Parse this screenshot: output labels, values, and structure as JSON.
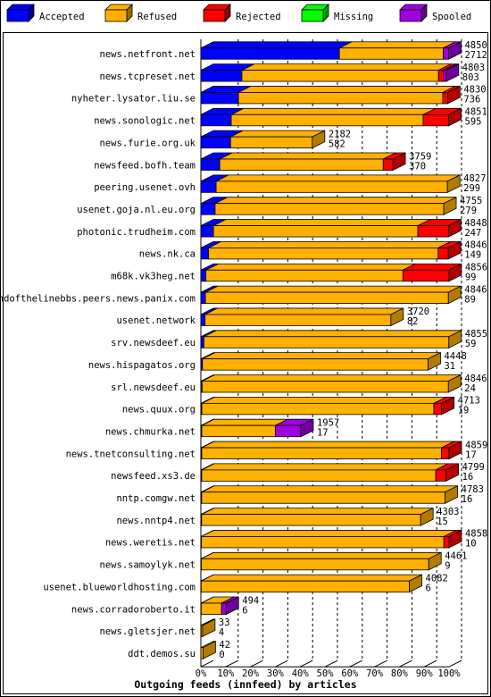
{
  "chart_data": {
    "type": "bar",
    "stacked": true,
    "orientation": "horizontal",
    "title": "Outgoing feeds (innfeed) by articles",
    "legend": [
      {
        "name": "Accepted",
        "color": "#0000ff"
      },
      {
        "name": "Refused",
        "color": "#ffb000"
      },
      {
        "name": "Rejected",
        "color": "#ff0000"
      },
      {
        "name": "Missing",
        "color": "#00ff00"
      },
      {
        "name": "Spooled",
        "color": "#a000e0"
      }
    ],
    "xlim": [
      0,
      100
    ],
    "xunit": "%",
    "xticks": [
      "0%",
      "10%",
      "20%",
      "30%",
      "40%",
      "50%",
      "60%",
      "70%",
      "80%",
      "90%",
      "100%"
    ],
    "max_total": 4859,
    "rows": [
      {
        "label": "news.netfront.net",
        "total": 4850,
        "accepted": 2712,
        "segments": [
          2712,
          2033,
          0,
          0,
          105
        ]
      },
      {
        "label": "news.tcpreset.net",
        "total": 4803,
        "accepted": 803,
        "segments": [
          803,
          3850,
          100,
          0,
          50
        ]
      },
      {
        "label": "nyheter.lysator.liu.se",
        "total": 4830,
        "accepted": 736,
        "segments": [
          736,
          4000,
          94,
          0,
          0
        ]
      },
      {
        "label": "news.sonologic.net",
        "total": 4851,
        "accepted": 595,
        "segments": [
          595,
          3756,
          500,
          0,
          0
        ]
      },
      {
        "label": "news.furie.org.uk",
        "total": 2182,
        "accepted": 582,
        "segments": [
          582,
          1600,
          0,
          0,
          0
        ]
      },
      {
        "label": "newsfeed.bofh.team",
        "total": 3759,
        "accepted": 370,
        "segments": [
          370,
          3200,
          189,
          0,
          0
        ]
      },
      {
        "label": "peering.usenet.ovh",
        "total": 4827,
        "accepted": 299,
        "segments": [
          299,
          4528,
          0,
          0,
          0
        ]
      },
      {
        "label": "usenet.goja.nl.eu.org",
        "total": 4755,
        "accepted": 279,
        "segments": [
          279,
          4476,
          0,
          0,
          0
        ]
      },
      {
        "label": "photonic.trudheim.com",
        "total": 4848,
        "accepted": 247,
        "segments": [
          247,
          4001,
          600,
          0,
          0
        ]
      },
      {
        "label": "news.nk.ca",
        "total": 4846,
        "accepted": 149,
        "segments": [
          149,
          4497,
          200,
          0,
          0
        ]
      },
      {
        "label": "m68k.vk3heg.net",
        "total": 4856,
        "accepted": 99,
        "segments": [
          99,
          3857,
          900,
          0,
          0
        ]
      },
      {
        "label": "endofthelinebbs.peers.news.panix.com",
        "total": 4846,
        "accepted": 89,
        "segments": [
          89,
          4757,
          0,
          0,
          0
        ]
      },
      {
        "label": "usenet.network",
        "total": 3720,
        "accepted": 82,
        "segments": [
          82,
          3638,
          0,
          0,
          0
        ]
      },
      {
        "label": "srv.newsdeef.eu",
        "total": 4855,
        "accepted": 59,
        "segments": [
          59,
          4796,
          0,
          0,
          0
        ]
      },
      {
        "label": "news.hispagatos.org",
        "total": 4448,
        "accepted": 31,
        "segments": [
          31,
          4417,
          0,
          0,
          0
        ]
      },
      {
        "label": "srl.newsdeef.eu",
        "total": 4846,
        "accepted": 24,
        "segments": [
          24,
          4822,
          0,
          0,
          0
        ]
      },
      {
        "label": "news.quux.org",
        "total": 4713,
        "accepted": 19,
        "segments": [
          19,
          4544,
          150,
          0,
          0
        ]
      },
      {
        "label": "news.chmurka.net",
        "total": 1957,
        "accepted": 17,
        "segments": [
          17,
          1440,
          0,
          0,
          500
        ]
      },
      {
        "label": "news.tnetconsulting.net",
        "total": 4859,
        "accepted": 17,
        "segments": [
          17,
          4692,
          150,
          0,
          0
        ]
      },
      {
        "label": "newsfeed.xs3.de",
        "total": 4799,
        "accepted": 16,
        "segments": [
          16,
          4583,
          200,
          0,
          0
        ]
      },
      {
        "label": "nntp.comgw.net",
        "total": 4783,
        "accepted": 16,
        "segments": [
          16,
          4767,
          0,
          0,
          0
        ]
      },
      {
        "label": "news.nntp4.net",
        "total": 4303,
        "accepted": 15,
        "segments": [
          15,
          4288,
          0,
          0,
          0
        ]
      },
      {
        "label": "news.weretis.net",
        "total": 4858,
        "accepted": 10,
        "segments": [
          10,
          4748,
          100,
          0,
          0
        ]
      },
      {
        "label": "news.samoylyk.net",
        "total": 4461,
        "accepted": 9,
        "segments": [
          9,
          4452,
          0,
          0,
          0
        ]
      },
      {
        "label": "usenet.blueworldhosting.com",
        "total": 4082,
        "accepted": 6,
        "segments": [
          6,
          4076,
          0,
          0,
          0
        ]
      },
      {
        "label": "news.corradoroberto.it",
        "total": 494,
        "accepted": 6,
        "segments": [
          6,
          400,
          0,
          0,
          88
        ]
      },
      {
        "label": "news.gletsjer.net",
        "total": 33,
        "accepted": 4,
        "segments": [
          4,
          29,
          0,
          0,
          0
        ]
      },
      {
        "label": "ddt.demos.su",
        "total": 42,
        "accepted": 0,
        "segments": [
          0,
          42,
          0,
          0,
          0
        ]
      }
    ]
  }
}
